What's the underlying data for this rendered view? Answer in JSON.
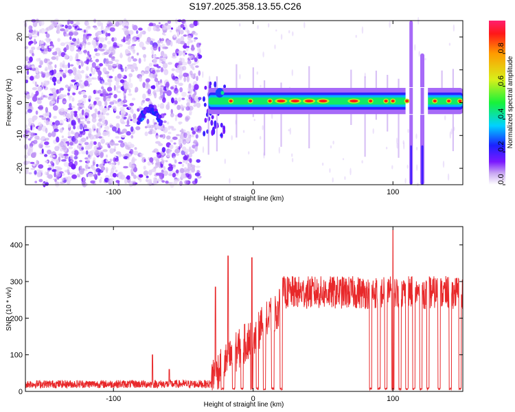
{
  "title": "S197.2025.358.13.55.C26",
  "colors": {
    "snr_line": "#e8282a",
    "spectrogram_colormap": [
      "#ffffff",
      "#c9a8f2",
      "#7a18ff",
      "#1b22ff",
      "#00d2ff",
      "#17f23a",
      "#d8f01a",
      "#ff9a00",
      "#ff1818",
      "#ff1f6f"
    ]
  },
  "chart_data": [
    {
      "type": "heatmap",
      "name": "spectrogram",
      "xlabel": "Height of straight line (km)",
      "ylabel": "Frequency (Hz)",
      "xlim": [
        -163,
        150
      ],
      "ylim": [
        -25,
        25
      ],
      "xticks": [
        -100,
        0,
        100
      ],
      "yticks": [
        -20,
        -10,
        0,
        10,
        20
      ],
      "colorbar": {
        "label": "Normalized spectral amplitude",
        "range": [
          0,
          1
        ],
        "ticks": [
          0.0,
          0.2,
          0.4,
          0.6,
          0.8
        ]
      },
      "noise_region_x": [
        -163,
        -38
      ],
      "ridge": {
        "frequency_hz": 0.5,
        "x_range": [
          -35,
          150
        ],
        "peak_x": [
          -16,
          -2,
          12,
          20,
          30,
          40,
          50,
          72,
          84,
          95,
          100,
          110,
          130,
          140,
          148
        ]
      },
      "features": [
        {
          "x": -75,
          "y_range": [
            -7,
            1
          ],
          "description": "diagonal"
        },
        {
          "x": 113,
          "y_range": [
            -25,
            25
          ],
          "description": "vertical band"
        },
        {
          "x": 121,
          "y_range": [
            -25,
            15
          ],
          "description": "vertical band"
        }
      ]
    },
    {
      "type": "line",
      "name": "snr",
      "xlabel": "Height of straight line (km)",
      "ylabel": "SNR (10 * v/v)",
      "xlim": [
        -163,
        150
      ],
      "ylim": [
        0,
        450
      ],
      "xticks": [
        -100,
        0,
        100
      ],
      "yticks": [
        0,
        100,
        200,
        300,
        400
      ],
      "baseline_range": [
        -163,
        -30
      ],
      "baseline_mean": 20,
      "noise_spikes": [
        {
          "x": -72,
          "y": 100
        },
        {
          "x": -60,
          "y": 60
        }
      ],
      "rise_range": [
        -30,
        20
      ],
      "spikes": [
        {
          "x": -18,
          "y": 370
        },
        {
          "x": -27,
          "y": 285
        },
        {
          "x": -1,
          "y": 365
        },
        {
          "x": 100,
          "y": 440
        }
      ],
      "plateau_mean": 270,
      "dips_to_zero_x": [
        -22,
        -14,
        -8,
        -1,
        3,
        8,
        14,
        20,
        84,
        90,
        95,
        100,
        105,
        110,
        115,
        120,
        125,
        133,
        141,
        148
      ]
    }
  ]
}
